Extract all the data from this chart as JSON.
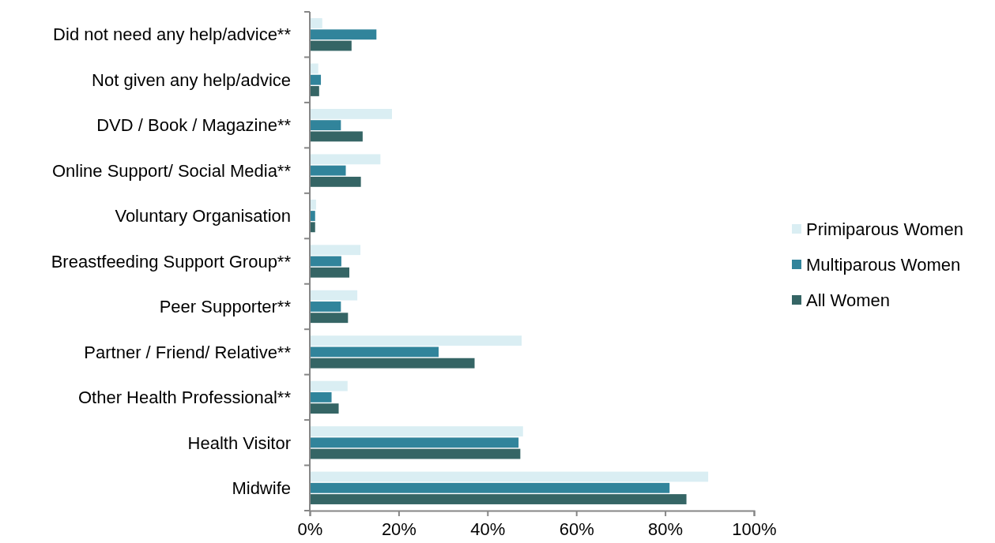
{
  "chart_data": {
    "type": "bar",
    "orientation": "horizontal",
    "categories": [
      "Did not need any help/advice**",
      "Not given any help/advice",
      "DVD / Book / Magazine**",
      "Online Support/ Social Media**",
      "Voluntary Organisation",
      "Breastfeeding Support Group**",
      "Peer Supporter**",
      "Partner / Friend/ Relative**",
      "Other Health Professional**",
      "Health Visitor",
      "Midwife"
    ],
    "series": [
      {
        "name": "Primiparous Women",
        "color": "#daeef3",
        "values": [
          2.8,
          1.9,
          18.5,
          15.9,
          1.4,
          11.4,
          10.7,
          47.7,
          8.5,
          48.0,
          89.7
        ]
      },
      {
        "name": "Multiparous Women",
        "color": "#31849b",
        "values": [
          15.0,
          2.5,
          7.0,
          8.1,
          1.2,
          7.1,
          7.0,
          29.0,
          4.9,
          47.0,
          81.0
        ]
      },
      {
        "name": "All Women",
        "color": "#356565",
        "values": [
          9.4,
          2.1,
          11.9,
          11.5,
          1.2,
          8.9,
          8.6,
          37.1,
          6.5,
          47.4,
          84.8
        ]
      }
    ],
    "xlim": [
      0,
      100
    ],
    "xticks": [
      {
        "value": 0,
        "label": "0%"
      },
      {
        "value": 20,
        "label": "20%"
      },
      {
        "value": 40,
        "label": "40%"
      },
      {
        "value": 60,
        "label": "60%"
      },
      {
        "value": 80,
        "label": "80%"
      },
      {
        "value": 100,
        "label": "100%"
      }
    ],
    "grid": false,
    "legend": "right"
  }
}
